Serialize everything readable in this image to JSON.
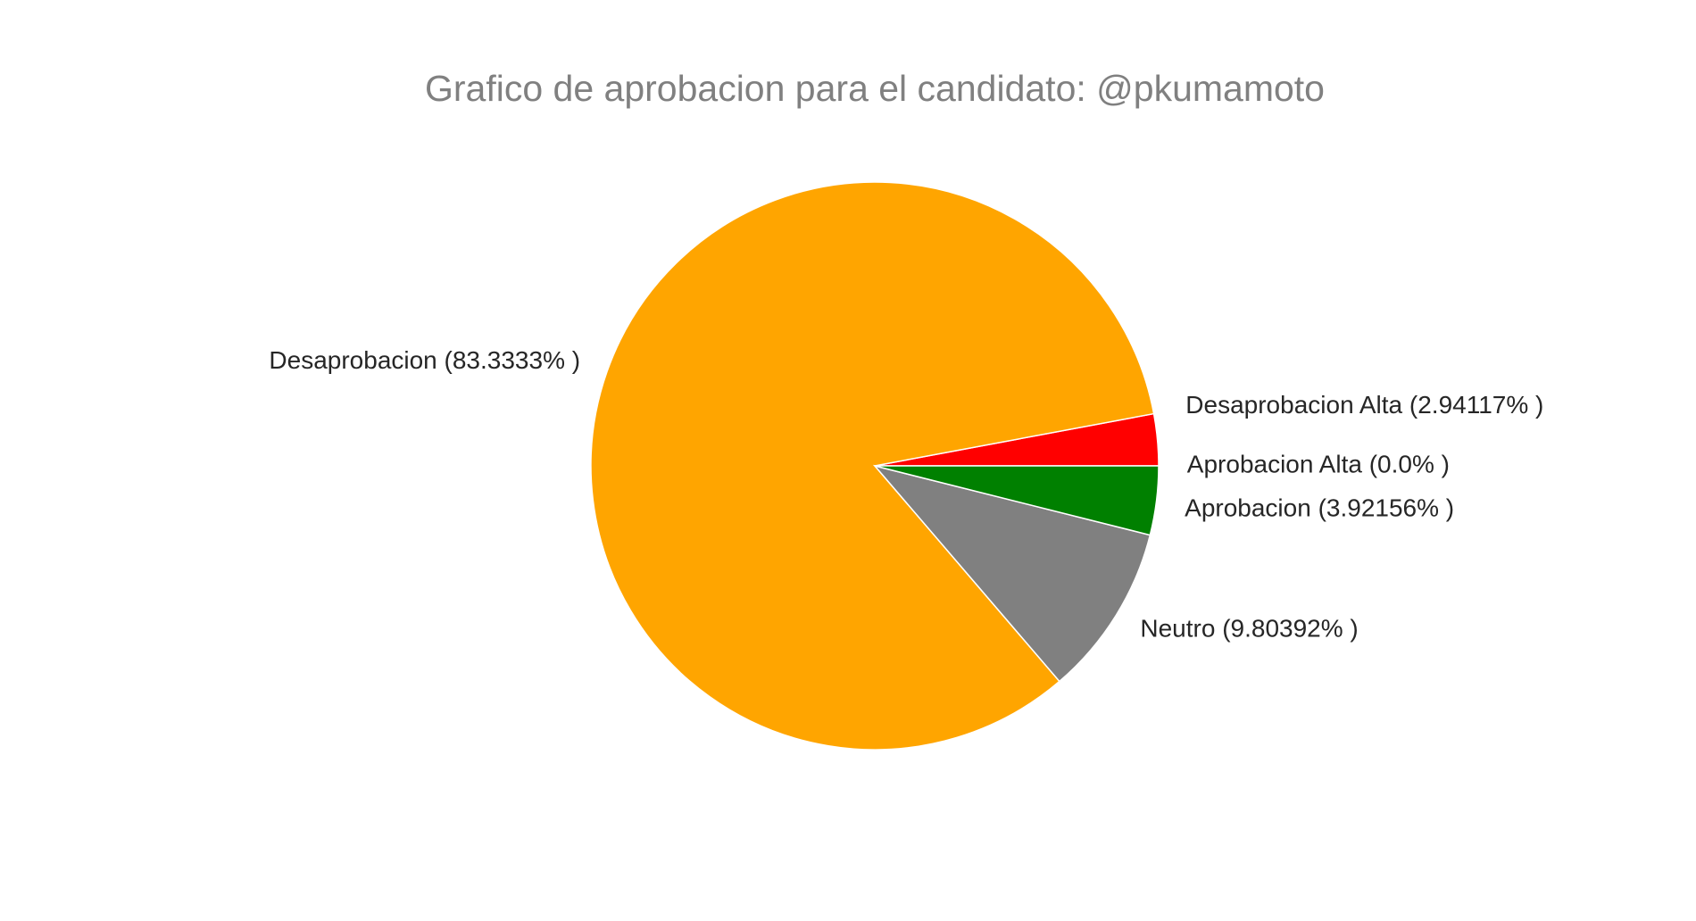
{
  "chart_data": {
    "type": "pie",
    "title": "Grafico de aprobacion para el candidato: @pkumamoto",
    "start_angle_deg": 0,
    "direction": "counterclockwise",
    "slices": [
      {
        "label": "Desaprobacion Alta (2.94117% )",
        "value": 2.94117,
        "color": "#ff0000"
      },
      {
        "label": "Desaprobacion (83.3333% )",
        "value": 83.3333,
        "color": "#ffa500"
      },
      {
        "label": "Neutro (9.80392% )",
        "value": 9.80392,
        "color": "#808080"
      },
      {
        "label": "Aprobacion (3.92156% )",
        "value": 3.92156,
        "color": "#008000"
      },
      {
        "label": "Aprobacion Alta (0.0% )",
        "value": 0.0,
        "color": "#0000ff"
      }
    ]
  }
}
